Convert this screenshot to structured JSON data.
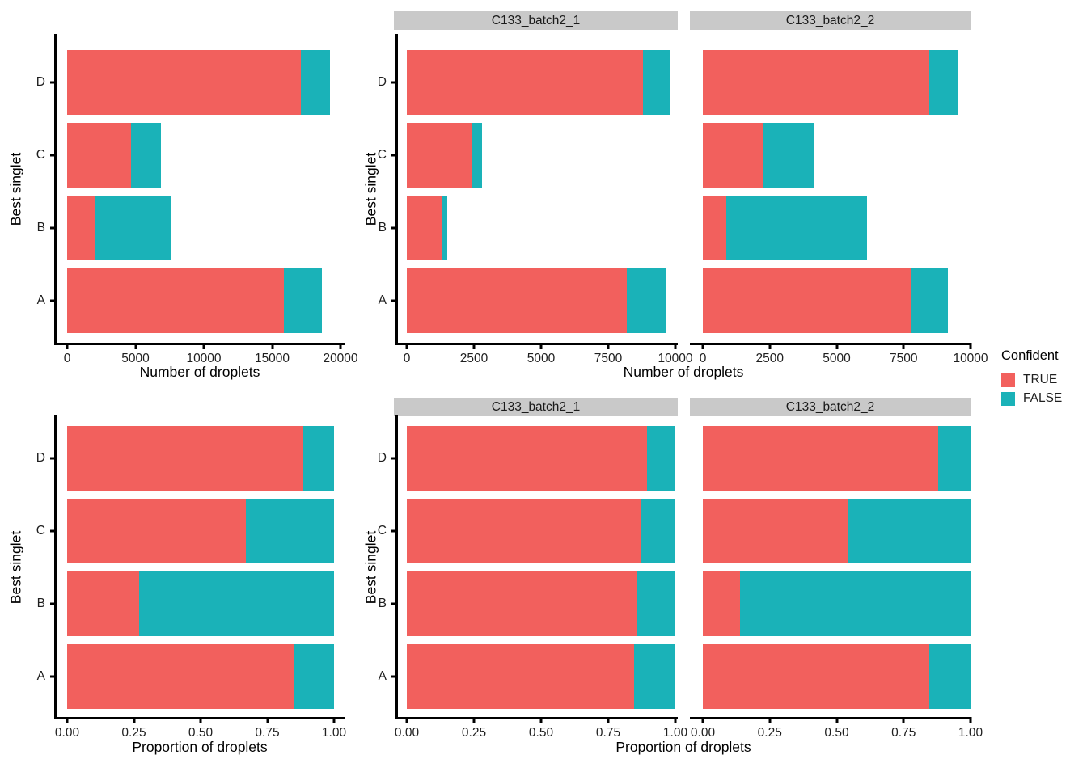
{
  "colors": {
    "true": "#F2605D",
    "false": "#1AB2B8",
    "strip_bg": "#C9C9C9",
    "axis": "#000000"
  },
  "axis_titles": {
    "counts": "Number of droplets",
    "proportions": "Proportion of droplets",
    "y": "Best singlet"
  },
  "legend": {
    "title": "Confident",
    "items": [
      {
        "label": "TRUE",
        "color": "#F2605D"
      },
      {
        "label": "FALSE",
        "color": "#1AB2B8"
      }
    ]
  },
  "chart_data": [
    {
      "type": "bar",
      "orientation": "horizontal",
      "stacked": true,
      "panel_key": "counts_all",
      "facet_label": null,
      "xlabel": "Number of droplets",
      "ylabel": "Best singlet",
      "categories": [
        "D",
        "C",
        "B",
        "A"
      ],
      "series": [
        {
          "name": "TRUE",
          "values": [
            17100,
            4650,
            2050,
            15850
          ]
        },
        {
          "name": "FALSE",
          "values": [
            2150,
            2200,
            5500,
            2800
          ]
        }
      ],
      "xlim": [
        0,
        20000
      ],
      "xticks": [
        0,
        5000,
        10000,
        15000,
        20000
      ],
      "xtick_labels": [
        "0",
        "5000",
        "10000",
        "15000",
        "20000"
      ],
      "grid": false,
      "legend_position": "right"
    },
    {
      "type": "bar",
      "orientation": "horizontal",
      "stacked": true,
      "panel_key": "counts_batch1",
      "facet_label": "C133_batch2_1",
      "xlabel": "Number of droplets",
      "ylabel": "Best singlet",
      "categories": [
        "D",
        "C",
        "B",
        "A"
      ],
      "series": [
        {
          "name": "TRUE",
          "values": [
            8800,
            2450,
            1280,
            8200
          ]
        },
        {
          "name": "FALSE",
          "values": [
            1000,
            350,
            220,
            1450
          ]
        }
      ],
      "xlim": [
        0,
        10000
      ],
      "xticks": [
        0,
        2500,
        5000,
        7500,
        10000
      ],
      "xtick_labels": [
        "0",
        "2500",
        "5000",
        "7500",
        "10000"
      ],
      "grid": false,
      "legend_position": "right"
    },
    {
      "type": "bar",
      "orientation": "horizontal",
      "stacked": true,
      "panel_key": "counts_batch2",
      "facet_label": "C133_batch2_2",
      "xlabel": "Number of droplets",
      "ylabel": "Best singlet",
      "categories": [
        "D",
        "C",
        "B",
        "A"
      ],
      "series": [
        {
          "name": "TRUE",
          "values": [
            8450,
            2250,
            880,
            7800
          ]
        },
        {
          "name": "FALSE",
          "values": [
            1100,
            1900,
            5250,
            1350
          ]
        }
      ],
      "xlim": [
        0,
        10000
      ],
      "xticks": [
        0,
        2500,
        5000,
        7500,
        10000
      ],
      "xtick_labels": [
        "0",
        "2500",
        "5000",
        "7500",
        "10000"
      ],
      "grid": false,
      "legend_position": "right"
    },
    {
      "type": "bar",
      "orientation": "horizontal",
      "stacked": true,
      "panel_key": "prop_all",
      "facet_label": null,
      "xlabel": "Proportion of droplets",
      "ylabel": "Best singlet",
      "categories": [
        "D",
        "C",
        "B",
        "A"
      ],
      "series": [
        {
          "name": "TRUE",
          "values": [
            0.885,
            0.67,
            0.27,
            0.85
          ]
        },
        {
          "name": "FALSE",
          "values": [
            0.115,
            0.33,
            0.73,
            0.15
          ]
        }
      ],
      "xlim": [
        0,
        1
      ],
      "xticks": [
        0,
        0.25,
        0.5,
        0.75,
        1
      ],
      "xtick_labels": [
        "0.00",
        "0.25",
        "0.50",
        "0.75",
        "1.00"
      ],
      "grid": false,
      "legend_position": "right"
    },
    {
      "type": "bar",
      "orientation": "horizontal",
      "stacked": true,
      "panel_key": "prop_batch1",
      "facet_label": "C133_batch2_1",
      "xlabel": "Proportion of droplets",
      "ylabel": "Best singlet",
      "categories": [
        "D",
        "C",
        "B",
        "A"
      ],
      "series": [
        {
          "name": "TRUE",
          "values": [
            0.895,
            0.87,
            0.855,
            0.845
          ]
        },
        {
          "name": "FALSE",
          "values": [
            0.105,
            0.13,
            0.145,
            0.155
          ]
        }
      ],
      "xlim": [
        0,
        1
      ],
      "xticks": [
        0,
        0.25,
        0.5,
        0.75,
        1
      ],
      "xtick_labels": [
        "0.00",
        "0.25",
        "0.50",
        "0.75",
        "1.00"
      ],
      "grid": false,
      "legend_position": "right"
    },
    {
      "type": "bar",
      "orientation": "horizontal",
      "stacked": true,
      "panel_key": "prop_batch2",
      "facet_label": "C133_batch2_2",
      "xlabel": "Proportion of droplets",
      "ylabel": "Best singlet",
      "categories": [
        "D",
        "C",
        "B",
        "A"
      ],
      "series": [
        {
          "name": "TRUE",
          "values": [
            0.88,
            0.54,
            0.14,
            0.845
          ]
        },
        {
          "name": "FALSE",
          "values": [
            0.12,
            0.46,
            0.86,
            0.155
          ]
        }
      ],
      "xlim": [
        0,
        1
      ],
      "xticks": [
        0,
        0.25,
        0.5,
        0.75,
        1
      ],
      "xtick_labels": [
        "0.00",
        "0.25",
        "0.50",
        "0.75",
        "1.00"
      ],
      "grid": false,
      "legend_position": "right"
    }
  ]
}
